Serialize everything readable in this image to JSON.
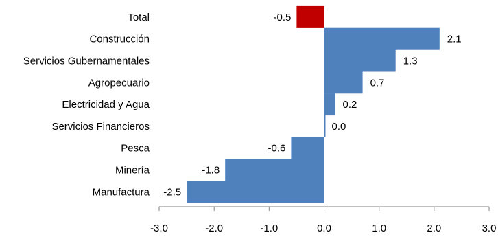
{
  "chart_data": {
    "type": "bar",
    "orientation": "horizontal",
    "title": "",
    "xlabel": "",
    "ylabel": "",
    "categories": [
      "Total",
      "Construcción",
      "Servicios Gubernamentales",
      "Agropecuario",
      "Electricidad y Agua",
      "Servicios Financieros",
      "Pesca",
      "Minería",
      "Manufactura"
    ],
    "values": [
      -0.5,
      2.1,
      1.3,
      0.7,
      0.2,
      0.0,
      -0.6,
      -1.8,
      -2.5
    ],
    "value_labels": [
      "-0.5",
      "2.1",
      "1.3",
      "0.7",
      "0.2",
      "0.0",
      "-0.6",
      "-1.8",
      "-2.5"
    ],
    "bar_colors": [
      "#C00000",
      "#4F81BD",
      "#4F81BD",
      "#4F81BD",
      "#4F81BD",
      "#4F81BD",
      "#4F81BD",
      "#4F81BD",
      "#4F81BD"
    ],
    "xlim": [
      -3.0,
      3.0
    ],
    "x_ticks": [
      -3.0,
      -2.0,
      -1.0,
      0.0,
      1.0,
      2.0,
      3.0
    ],
    "x_tick_labels": [
      "-3.0",
      "-2.0",
      "-1.0",
      "0.0",
      "1.0",
      "2.0",
      "3.0"
    ],
    "grid": false,
    "legend": "none"
  }
}
